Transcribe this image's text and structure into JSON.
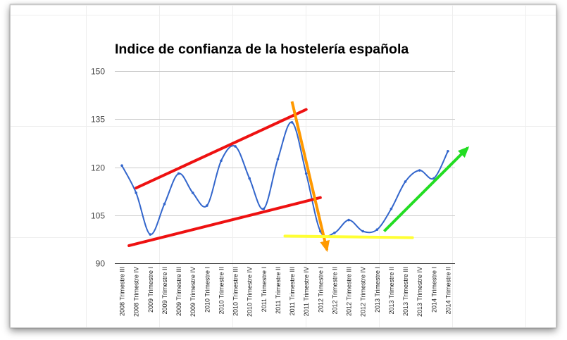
{
  "chart_data": {
    "type": "line",
    "title": "Indice de confianza de la hostelería española",
    "xlabel": "",
    "ylabel": "",
    "ylim": [
      90,
      150
    ],
    "yticks": [
      90,
      105,
      120,
      135,
      150
    ],
    "grid": true,
    "legend": "none",
    "categories": [
      "2008 Trimestre III",
      "2008 Trimestre IV",
      "2009 Trimestre I",
      "2009 Trimestre II",
      "2009 Trimestre III",
      "2009 Trimestre IV",
      "2010 Trimestre I",
      "2010 Trimestre II",
      "2010 Trimestre III",
      "2010 Trimestre IV",
      "2011 Trimestre I",
      "2011 Trimestre II",
      "2011 Trimestre III",
      "2011 Trimestre IV",
      "2012 Trimestre I",
      "2012 Trimestre II",
      "2012 Trimestre III",
      "2012 Trimestre IV",
      "2013 Trimestre I",
      "2013 Trimestre II",
      "2013 Trimestre III",
      "2013 Trimestre IV",
      "2014 Trimestre I",
      "2014 Trimestre II"
    ],
    "series": [
      {
        "color": "#3366cc",
        "values": [
          120.5,
          112,
          99,
          108.5,
          118,
          112,
          108,
          122,
          126.5,
          116.5,
          107,
          122.5,
          134,
          118,
          100,
          99.5,
          103.5,
          100,
          100.5,
          107,
          115.5,
          119,
          116.5,
          125
        ]
      }
    ],
    "annotations": [
      {
        "kind": "line",
        "color": "#ee1111",
        "from": [
          0.5,
          95.5
        ],
        "to": [
          14,
          110.5
        ]
      },
      {
        "kind": "line",
        "color": "#ee1111",
        "from": [
          1,
          113.5
        ],
        "to": [
          13,
          138
        ]
      },
      {
        "kind": "arrow",
        "color": "#ff9900",
        "from": [
          12,
          140.5
        ],
        "to": [
          14.5,
          93.5
        ]
      },
      {
        "kind": "line",
        "color": "#ffff33",
        "from": [
          11.5,
          98.5
        ],
        "to": [
          20.5,
          98
        ]
      },
      {
        "kind": "arrow",
        "color": "#22dd22",
        "from": [
          18.5,
          100
        ],
        "to": [
          24.5,
          126.5
        ]
      }
    ]
  }
}
